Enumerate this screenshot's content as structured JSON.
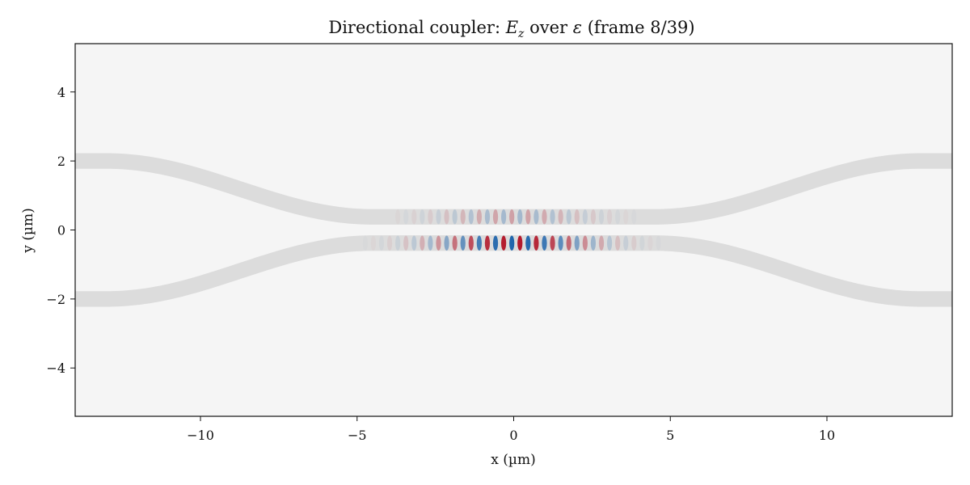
{
  "chart_data": {
    "type": "heatmap",
    "title": {
      "prefix": "Directional coupler: ",
      "field_symbol": "E",
      "field_subscript": "z",
      "middle": " over ",
      "eps_symbol": "ε",
      "suffix": " (frame 8/39)"
    },
    "xlabel": "x (µm)",
    "ylabel": "y (µm)",
    "xlim": [
      -14,
      14
    ],
    "ylim": [
      -5.4,
      5.4
    ],
    "x_ticks": [
      -10,
      -5,
      0,
      5,
      10
    ],
    "x_tick_labels": [
      "−10",
      "−5",
      "0",
      "5",
      "10"
    ],
    "y_ticks": [
      -4,
      -2,
      0,
      2,
      4
    ],
    "y_tick_labels": [
      "−4",
      "−2",
      "0",
      "2",
      "4"
    ],
    "grid": false,
    "background_color": "#f5f5f5",
    "waveguide_color": "#dcdcdc",
    "waveguides": {
      "width_um": 0.45,
      "gap_center_offset_um": 0.38,
      "outer_offset_um": 2.0,
      "transition_start_um": 4.5,
      "transition_end_um": 13.0
    },
    "field": {
      "colormap": "RdBu_r",
      "positive_color": "#b2182b",
      "negative_color": "#2166ac",
      "lower_guide_peak_amplitude": 1.0,
      "upper_guide_peak_amplitude": 0.3,
      "envelope_center_x_um": 0.0,
      "envelope_sigma_um": 1.7,
      "wavelength_um": 0.52
    }
  }
}
